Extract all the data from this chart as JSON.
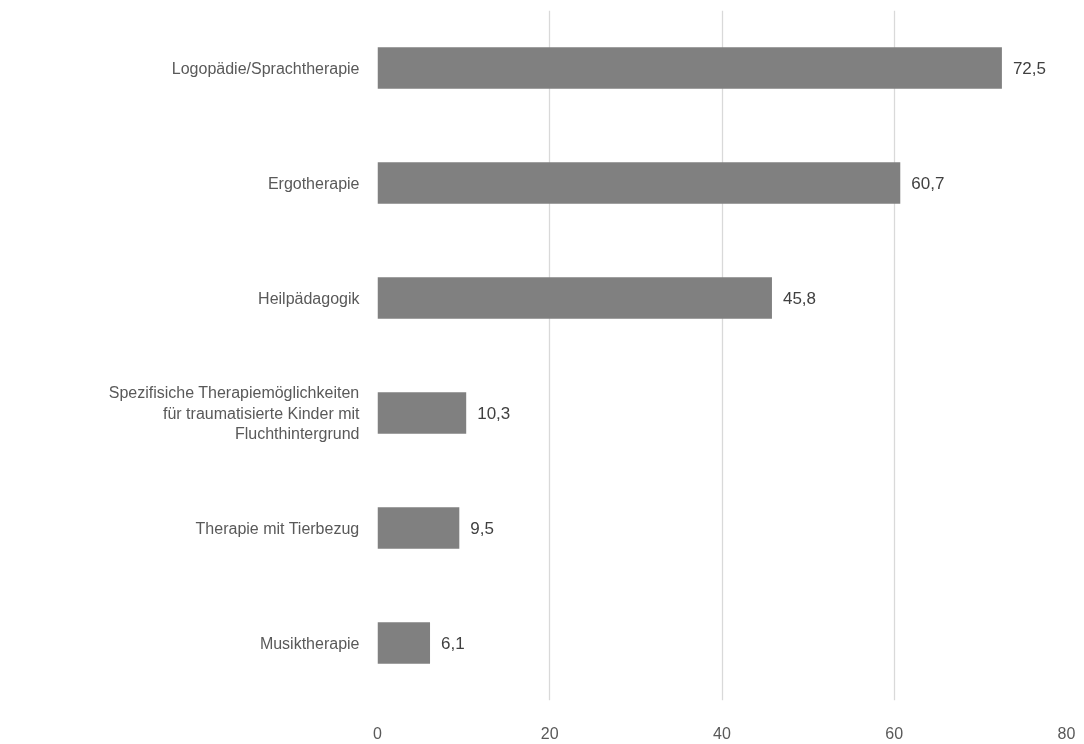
{
  "chart_data": {
    "type": "bar",
    "orientation": "horizontal",
    "categories": [
      "Logopädie/Sprachtherapie",
      "Ergotherapie",
      "Heilpädagogik",
      "Spezifisiche Therapiemöglichkeiten für traumatisierte Kinder mit Fluchthintergrund",
      "Therapie mit Tierbezug",
      "Musiktherapie"
    ],
    "values": [
      72.5,
      60.7,
      45.8,
      10.3,
      9.5,
      6.1
    ],
    "value_labels": [
      "72,5",
      "60,7",
      "45,8",
      "10,3",
      "9,5",
      "6,1"
    ],
    "color": "#808080",
    "xlim": [
      0,
      80
    ],
    "xticks": [
      0,
      20,
      40,
      60,
      80
    ],
    "grid": "x"
  }
}
